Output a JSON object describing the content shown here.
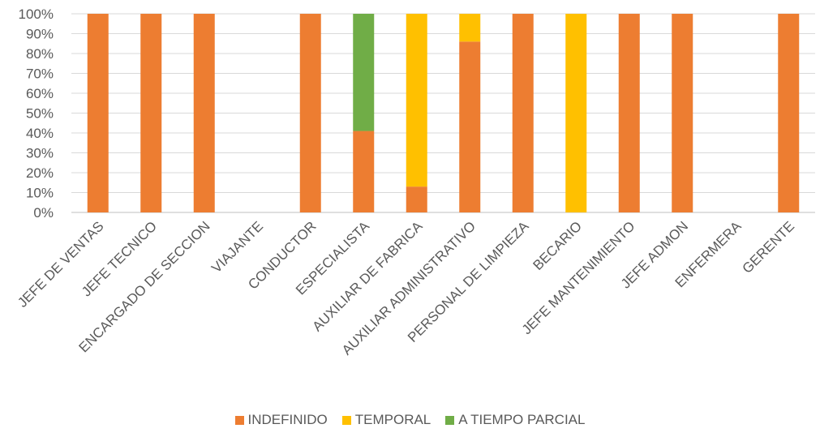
{
  "chart_data": {
    "type": "bar",
    "stacked": true,
    "percent": true,
    "categories": [
      "JEFE DE VENTAS",
      "JEFE TECNICO",
      "ENCARGADO DE SECCION",
      "VIAJANTE",
      "CONDUCTOR",
      "ESPECIALISTA",
      "AUXILIAR DE FABRICA",
      "AUXILIAR ADMINISTRATIVO",
      "PERSONAL DE LIMPIEZA",
      "BECARIO",
      "JEFE MANTENIMIENTO",
      "JEFE ADMON",
      "ENFERMERA",
      "GERENTE"
    ],
    "series": [
      {
        "name": "INDEFINIDO",
        "color": "#ED7D31",
        "values": [
          100,
          100,
          100,
          0,
          100,
          41,
          13,
          86,
          100,
          0,
          100,
          100,
          0,
          100
        ]
      },
      {
        "name": "TEMPORAL",
        "color": "#FFC000",
        "values": [
          0,
          0,
          0,
          0,
          0,
          0,
          87,
          14,
          0,
          100,
          0,
          0,
          0,
          0
        ]
      },
      {
        "name": "A TIEMPO PARCIAL",
        "color": "#70AD47",
        "values": [
          0,
          0,
          0,
          0,
          0,
          59,
          0,
          0,
          0,
          0,
          0,
          0,
          0,
          0
        ]
      }
    ],
    "ylim": [
      0,
      100
    ],
    "yticks": [
      "0%",
      "10%",
      "20%",
      "30%",
      "40%",
      "50%",
      "60%",
      "70%",
      "80%",
      "90%",
      "100%"
    ],
    "grid": true,
    "legend_position": "bottom"
  }
}
